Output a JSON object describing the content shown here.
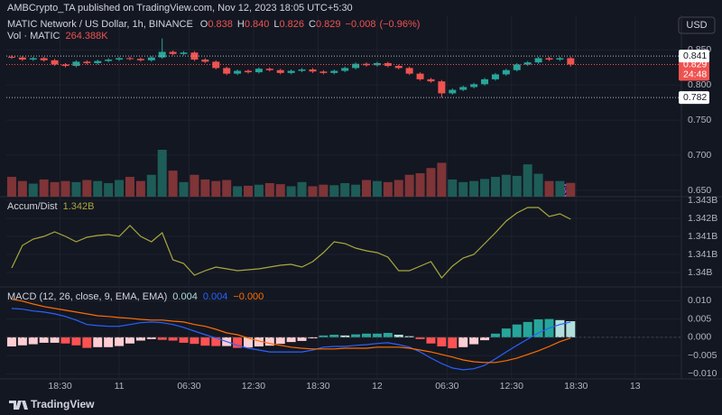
{
  "header": {
    "publisher": "AMBCrypto_TA published on TradingView.com, Nov 12, 2023 18:05 UTC+5:30",
    "currency": "USD",
    "brand": "TradingView"
  },
  "chart_data": [
    {
      "type": "candlestick",
      "title": "MATIC Network / US Dollar, 1h, BINANCE",
      "ohlc_letters": [
        "O",
        "H",
        "L",
        "C"
      ],
      "last_labels": [
        "0.838",
        "0.840",
        "0.826",
        "0.829"
      ],
      "change": {
        "value": -0.008,
        "label": "−0.008"
      },
      "change_percent": {
        "value": -0.96,
        "label": "(−0.96%)"
      },
      "volume_name": "Vol · MATIC",
      "volume_last_label": "264.388K",
      "up_color": "#26a69a",
      "down_color": "#ef5350",
      "volume_up_color": "#1e5c57",
      "volume_down_color": "#7f3437",
      "price_lines": [
        0.841,
        0.782
      ],
      "countdown": "24:48",
      "xlim": [
        -0.5,
        62.3
      ],
      "x": [
        0,
        1,
        2,
        3,
        4,
        5,
        6,
        7,
        8,
        9,
        10,
        11,
        12,
        13,
        14,
        15,
        16,
        17,
        18,
        19,
        20,
        21,
        22,
        23,
        24,
        25,
        26,
        27,
        28,
        29,
        30,
        31,
        32,
        33,
        34,
        35,
        36,
        37,
        38,
        39,
        40,
        41,
        42,
        43,
        44,
        45,
        46,
        47,
        48,
        49,
        50,
        51,
        52
      ],
      "open": [
        0.84,
        0.839,
        0.836,
        0.838,
        0.835,
        0.829,
        0.827,
        0.833,
        0.831,
        0.834,
        0.836,
        0.838,
        0.837,
        0.835,
        0.839,
        0.847,
        0.844,
        0.846,
        0.836,
        0.833,
        0.824,
        0.816,
        0.82,
        0.818,
        0.823,
        0.821,
        0.817,
        0.82,
        0.822,
        0.819,
        0.817,
        0.82,
        0.824,
        0.83,
        0.828,
        0.831,
        0.827,
        0.824,
        0.816,
        0.808,
        0.805,
        0.788,
        0.793,
        0.797,
        0.801,
        0.808,
        0.815,
        0.821,
        0.829,
        0.832,
        0.838,
        0.836,
        0.838
      ],
      "high": [
        0.842,
        0.841,
        0.84,
        0.84,
        0.837,
        0.831,
        0.835,
        0.835,
        0.836,
        0.838,
        0.84,
        0.84,
        0.839,
        0.841,
        0.866,
        0.849,
        0.848,
        0.848,
        0.838,
        0.835,
        0.826,
        0.822,
        0.822,
        0.825,
        0.825,
        0.823,
        0.822,
        0.824,
        0.824,
        0.821,
        0.822,
        0.826,
        0.832,
        0.832,
        0.833,
        0.833,
        0.829,
        0.826,
        0.818,
        0.81,
        0.807,
        0.795,
        0.799,
        0.803,
        0.81,
        0.817,
        0.823,
        0.831,
        0.834,
        0.84,
        0.84,
        0.84,
        0.84
      ],
      "low": [
        0.837,
        0.834,
        0.834,
        0.833,
        0.827,
        0.825,
        0.825,
        0.829,
        0.829,
        0.832,
        0.834,
        0.835,
        0.833,
        0.833,
        0.837,
        0.842,
        0.842,
        0.834,
        0.831,
        0.822,
        0.814,
        0.814,
        0.816,
        0.816,
        0.819,
        0.815,
        0.815,
        0.818,
        0.817,
        0.815,
        0.815,
        0.818,
        0.822,
        0.826,
        0.826,
        0.825,
        0.822,
        0.814,
        0.806,
        0.803,
        0.782,
        0.786,
        0.791,
        0.795,
        0.799,
        0.806,
        0.813,
        0.819,
        0.827,
        0.83,
        0.834,
        0.834,
        0.826
      ],
      "close": [
        0.839,
        0.836,
        0.838,
        0.835,
        0.829,
        0.827,
        0.833,
        0.831,
        0.834,
        0.836,
        0.838,
        0.837,
        0.835,
        0.839,
        0.847,
        0.844,
        0.846,
        0.836,
        0.833,
        0.824,
        0.816,
        0.82,
        0.818,
        0.823,
        0.821,
        0.817,
        0.82,
        0.822,
        0.819,
        0.817,
        0.82,
        0.824,
        0.83,
        0.828,
        0.831,
        0.827,
        0.824,
        0.816,
        0.808,
        0.805,
        0.788,
        0.793,
        0.797,
        0.801,
        0.808,
        0.815,
        0.821,
        0.829,
        0.832,
        0.838,
        0.836,
        0.838,
        0.829
      ],
      "volume": [
        380000,
        300000,
        250000,
        330000,
        280000,
        300000,
        280000,
        320000,
        300000,
        260000,
        320000,
        380000,
        300000,
        420000,
        900000,
        500000,
        280000,
        420000,
        330000,
        300000,
        320000,
        200000,
        210000,
        230000,
        260000,
        240000,
        200000,
        280000,
        200000,
        230000,
        220000,
        260000,
        230000,
        320000,
        300000,
        280000,
        320000,
        420000,
        450000,
        550000,
        650000,
        330000,
        280000,
        300000,
        340000,
        380000,
        420000,
        400000,
        620000,
        440000,
        300000,
        300000,
        264388
      ],
      "ylim": [
        0.641,
        0.872
      ],
      "yticks": [
        {
          "value": 0.85,
          "label": "0.850"
        },
        {
          "value": 0.8,
          "label": "0.800"
        },
        {
          "value": 0.75,
          "label": "0.750"
        },
        {
          "value": 0.7,
          "label": "0.700"
        },
        {
          "value": 0.65,
          "label": "0.650"
        }
      ],
      "grid": true
    },
    {
      "type": "line",
      "title": "Accum/Dist",
      "color": "#a8a83c",
      "last_label": "1.342B",
      "values": [
        1340225000,
        1341100000,
        1341345000,
        1341450000,
        1341625000,
        1341450000,
        1341240000,
        1341415000,
        1341485000,
        1341520000,
        1341450000,
        1341870000,
        1341450000,
        1341240000,
        1341590000,
        1340540000,
        1340400000,
        1339945000,
        1340120000,
        1340260000,
        1340190000,
        1340120000,
        1340155000,
        1340190000,
        1340260000,
        1340330000,
        1340365000,
        1340260000,
        1340470000,
        1340820000,
        1341240000,
        1341170000,
        1340995000,
        1340890000,
        1340820000,
        1340645000,
        1340120000,
        1340120000,
        1340295000,
        1340470000,
        1339840000,
        1340295000,
        1340610000,
        1340750000,
        1341170000,
        1341590000,
        1342045000,
        1342360000,
        1342570000,
        1342570000,
        1342220000,
        1342325000,
        1342115000
      ],
      "ylim": [
        1339490000,
        1343130000
      ],
      "yticks": [
        {
          "value": 1342850000,
          "label": "1.343B"
        },
        {
          "value": 1342150000,
          "label": "1.342B"
        },
        {
          "value": 1341450000,
          "label": "1.341B"
        },
        {
          "value": 1340750000,
          "label": "1.341B"
        },
        {
          "value": 1340050000,
          "label": "1.34B"
        }
      ],
      "grid": true
    },
    {
      "type": "macd",
      "title": "MACD (12, 26, close, 9, EMA, EMA)",
      "last_labels": [
        "0.004",
        "0.004",
        "−0.000"
      ],
      "histogram_colors": [
        "#26a69a",
        "#b2dfdb",
        "#ff5252",
        "#ffcdd2"
      ],
      "macd_color": "#2962ff",
      "signal_color": "#ff6d00",
      "histogram": [
        -0.0025,
        -0.0022,
        -0.0019,
        -0.0015,
        -0.0015,
        -0.0017,
        -0.0022,
        -0.0029,
        -0.0027,
        -0.0027,
        -0.0024,
        -0.0017,
        -0.0009,
        -0.0005,
        -0.0007,
        -0.0009,
        -0.0015,
        -0.0018,
        -0.0023,
        -0.0024,
        -0.0024,
        -0.0029,
        -0.0028,
        -0.0025,
        -0.0023,
        -0.0018,
        -0.0013,
        -0.001,
        -0.0003,
        0.0005,
        0.0007,
        0.0005,
        0.0008,
        0.001,
        0.001,
        0.0012,
        0.0007,
        0.0003,
        -0.0005,
        -0.0017,
        -0.0025,
        -0.003,
        -0.0027,
        -0.0019,
        -0.0008,
        0.001,
        0.0024,
        0.0035,
        0.0042,
        0.0049,
        0.005,
        0.0047,
        0.0044
      ],
      "macd": [
        0.0079,
        0.0077,
        0.0072,
        0.0069,
        0.0064,
        0.0057,
        0.0047,
        0.0035,
        0.0032,
        0.003,
        0.003,
        0.0035,
        0.004,
        0.0042,
        0.004,
        0.0035,
        0.0027,
        0.0017,
        0.0007,
        -0.0002,
        -0.0012,
        -0.0022,
        -0.003,
        -0.0035,
        -0.004,
        -0.004,
        -0.004,
        -0.004,
        -0.0035,
        -0.0027,
        -0.0025,
        -0.0025,
        -0.0022,
        -0.002,
        -0.0017,
        -0.0015,
        -0.002,
        -0.0027,
        -0.004,
        -0.0057,
        -0.0072,
        -0.0084,
        -0.0089,
        -0.0086,
        -0.0077,
        -0.0059,
        -0.004,
        -0.0022,
        -0.0005,
        0.0012,
        0.0025,
        0.0035,
        0.0042
      ],
      "signal": [
        0.0104,
        0.0099,
        0.0091,
        0.0084,
        0.0079,
        0.0074,
        0.0069,
        0.0064,
        0.0059,
        0.0057,
        0.0054,
        0.0052,
        0.0049,
        0.0047,
        0.0047,
        0.0044,
        0.0042,
        0.0035,
        0.003,
        0.0022,
        0.0012,
        0.0007,
        -0.0002,
        -0.001,
        -0.0017,
        -0.0022,
        -0.0027,
        -0.003,
        -0.0032,
        -0.0032,
        -0.0032,
        -0.003,
        -0.003,
        -0.003,
        -0.0027,
        -0.0027,
        -0.0027,
        -0.003,
        -0.0035,
        -0.004,
        -0.0047,
        -0.0054,
        -0.0062,
        -0.0067,
        -0.0069,
        -0.0069,
        -0.0064,
        -0.0057,
        -0.0047,
        -0.0037,
        -0.0025,
        -0.0012,
        -0.0002
      ],
      "ylim": [
        -0.0109,
        0.0133
      ],
      "yticks": [
        {
          "value": 0.01,
          "label": "0.010"
        },
        0.005,
        {
          "value": 0,
          "label": "0.000"
        },
        {
          "value": -0.005,
          "label": "−0.005"
        },
        {
          "value": -0.01,
          "label": "−0.010"
        }
      ],
      "xticks": [
        {
          "value": 4.5,
          "label": "18:30"
        },
        {
          "value": 10,
          "label": "11"
        },
        {
          "value": 16.5,
          "label": "06:30"
        },
        {
          "value": 22.5,
          "label": "12:30"
        },
        {
          "value": 28.5,
          "label": "18:30"
        },
        {
          "value": 34,
          "label": "12"
        },
        {
          "value": 40.5,
          "label": "06:30"
        },
        {
          "value": 46.5,
          "label": "12:30"
        },
        {
          "value": 52.5,
          "label": "18:30"
        },
        {
          "value": 58,
          "label": "13"
        }
      ],
      "grid": true
    }
  ]
}
